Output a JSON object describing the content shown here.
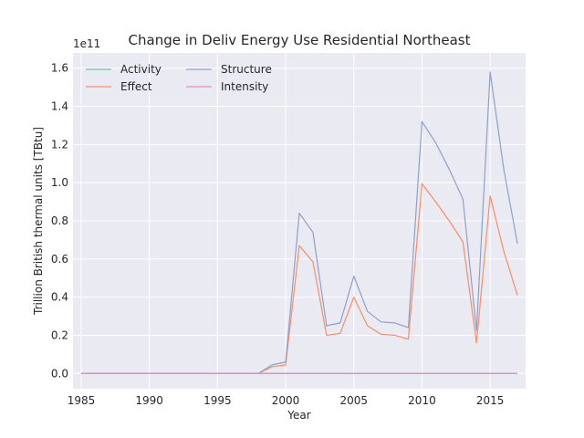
{
  "chart_data": {
    "type": "line",
    "title": "Change in Deliv Energy Use Residential Northeast",
    "xlabel": "Year",
    "ylabel": "Trillion British thermal units [TBtu]",
    "offset_text": "1e11",
    "xlim": [
      1984.4,
      2017.6
    ],
    "ylim": [
      -0.08,
      1.68
    ],
    "x_ticks": [
      1985,
      1990,
      1995,
      2000,
      2005,
      2010,
      2015
    ],
    "x_tick_labels": [
      "1985",
      "1990",
      "1995",
      "2000",
      "2005",
      "2010",
      "2015"
    ],
    "y_ticks": [
      0,
      0.2,
      0.4,
      0.6,
      0.8,
      1.0,
      1.2,
      1.4,
      1.6
    ],
    "y_tick_labels": [
      "0.0",
      "0.2",
      "0.4",
      "0.6",
      "0.8",
      "1.0",
      "1.2",
      "1.4",
      "1.6"
    ],
    "grid": true,
    "legend_position": "top-left",
    "x": [
      1985,
      1986,
      1987,
      1988,
      1989,
      1990,
      1991,
      1992,
      1993,
      1994,
      1995,
      1996,
      1997,
      1998,
      1999,
      2000,
      2001,
      2002,
      2003,
      2004,
      2005,
      2006,
      2007,
      2008,
      2009,
      2010,
      2011,
      2012,
      2013,
      2014,
      2015,
      2016,
      2017
    ],
    "series": [
      {
        "name": "Activity",
        "color": "#66c2a5",
        "values": [
          0,
          0,
          0,
          0,
          0,
          0,
          0,
          0,
          0,
          0,
          0,
          0,
          0,
          0,
          0,
          0,
          0,
          0,
          0,
          0,
          0,
          0,
          0,
          0,
          0,
          0,
          0,
          0,
          0,
          0,
          0,
          0,
          0
        ]
      },
      {
        "name": "Effect",
        "color": "#fc8d62",
        "values": [
          0,
          0,
          0,
          0,
          0,
          0,
          0,
          0,
          0,
          0,
          0,
          0,
          0,
          0,
          0.035,
          0.045,
          0.67,
          0.585,
          0.2,
          0.21,
          0.4,
          0.25,
          0.205,
          0.2,
          0.18,
          0.995,
          0.9,
          0.8,
          0.69,
          0.16,
          0.93,
          0.64,
          0.41
        ]
      },
      {
        "name": "Structure",
        "color": "#8da0cb",
        "values": [
          0,
          0,
          0,
          0,
          0,
          0,
          0,
          0,
          0,
          0,
          0,
          0,
          0,
          0,
          0.045,
          0.06,
          0.84,
          0.74,
          0.25,
          0.265,
          0.51,
          0.325,
          0.27,
          0.265,
          0.24,
          1.32,
          1.21,
          1.07,
          0.915,
          0.225,
          1.58,
          1.07,
          0.68
        ]
      },
      {
        "name": "Intensity",
        "color": "#e78ac3",
        "values": [
          0,
          0,
          0,
          0,
          0,
          0,
          0,
          0,
          0,
          0,
          0,
          0,
          0,
          0,
          0,
          0,
          0,
          0,
          0,
          0,
          0,
          0,
          0,
          0,
          0,
          0,
          0,
          0,
          0,
          0,
          0,
          0,
          0
        ]
      }
    ]
  }
}
